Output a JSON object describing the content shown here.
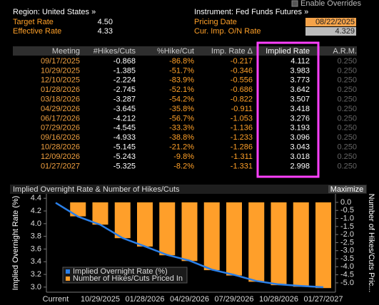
{
  "checkbox": {
    "label": "Enable Overrides"
  },
  "header": {
    "region": "Region: United States »",
    "instrument": "Instrument: Fed Funds Futures »",
    "target_rate_label": "Target Rate",
    "target_rate": "4.50",
    "pricing_date_label": "Pricing Date",
    "pricing_date": "08/22/2025",
    "effective_rate_label": "Effective Rate",
    "effective_rate": "4.33",
    "cur_imp_label": "Cur. Imp. O/N Rate",
    "cur_imp": "4.329"
  },
  "table": {
    "columns": [
      "Meeting",
      "#Hikes/Cuts",
      "%Hike/Cut",
      "Imp. Rate Δ",
      "Implied Rate",
      "A.R.M."
    ],
    "rows": [
      [
        "09/17/2025",
        "-0.868",
        "-86.8%",
        "-0.217",
        "4.112",
        "0.250"
      ],
      [
        "10/29/2025",
        "-1.385",
        "-51.7%",
        "-0.346",
        "3.983",
        "0.250"
      ],
      [
        "12/10/2025",
        "-2.224",
        "-83.9%",
        "-0.556",
        "3.773",
        "0.250"
      ],
      [
        "01/28/2026",
        "-2.745",
        "-52.1%",
        "-0.686",
        "3.642",
        "0.250"
      ],
      [
        "03/18/2026",
        "-3.287",
        "-54.2%",
        "-0.822",
        "3.507",
        "0.250"
      ],
      [
        "04/29/2026",
        "-3.645",
        "-35.8%",
        "-0.911",
        "3.418",
        "0.250"
      ],
      [
        "06/17/2026",
        "-4.212",
        "-56.7%",
        "-1.053",
        "3.276",
        "0.250"
      ],
      [
        "07/29/2026",
        "-4.545",
        "-33.3%",
        "-1.136",
        "3.193",
        "0.250"
      ],
      [
        "09/16/2026",
        "-4.933",
        "-38.8%",
        "-1.233",
        "3.096",
        "0.250"
      ],
      [
        "10/28/2026",
        "-5.145",
        "-21.2%",
        "-1.286",
        "3.043",
        "0.250"
      ],
      [
        "12/09/2026",
        "-5.243",
        "-9.8%",
        "-1.311",
        "3.018",
        "0.250"
      ],
      [
        "01/27/2027",
        "-5.325",
        "-8.2%",
        "-1.331",
        "2.998",
        "0.250"
      ]
    ]
  },
  "maximize_button": "Maximize",
  "chart_data": {
    "type": "combo",
    "title": "Implied Overnight Rate & Number of Hikes/Cuts",
    "y_label": "Implied Overnight Rate (%)",
    "y2_label": "Number of Hikes/Cuts Pric...",
    "categories": [
      "Current",
      null,
      "10/29/2025",
      null,
      "01/28/2026",
      null,
      "04/29/2026",
      null,
      "07/29/2026",
      null,
      "10/28/2026",
      null,
      "01/27/2027"
    ],
    "series": [
      {
        "name": "Implied Overnight Rate (%)",
        "color": "#2a7fe8",
        "type": "line",
        "values": [
          4.329,
          4.112,
          3.983,
          3.773,
          3.642,
          3.507,
          3.418,
          3.276,
          3.193,
          3.096,
          3.043,
          3.018,
          2.998
        ]
      },
      {
        "name": "Number of Hikes/Cuts Priced In",
        "color": "#ff9f2a",
        "type": "bar",
        "axis": "y2",
        "values": [
          null,
          -0.868,
          -1.385,
          -2.224,
          -2.745,
          -3.287,
          -3.645,
          -4.212,
          -4.545,
          -4.933,
          -5.145,
          -5.243,
          -5.325
        ]
      }
    ],
    "ylim": [
      2.92,
      4.47
    ],
    "yticks": [
      {
        "value": 3,
        "label": "3.0"
      },
      3.2,
      3.4,
      3.6,
      3.8,
      {
        "value": 4,
        "label": "4.0"
      },
      4.2,
      4.4
    ],
    "y2lim": [
      -5.58,
      0.53
    ],
    "y2ticks": [
      {
        "value": 0,
        "label": "0.0"
      },
      -0.5,
      {
        "value": -1,
        "label": "-1.0"
      },
      -1.5,
      {
        "value": -2,
        "label": "-2.0"
      },
      -2.5,
      {
        "value": -3,
        "label": "-3.0"
      },
      -3.5,
      {
        "value": -4,
        "label": "-4.0"
      },
      -4.5,
      {
        "value": -5,
        "label": "-5.0"
      }
    ],
    "legend_position": "lower-left"
  }
}
